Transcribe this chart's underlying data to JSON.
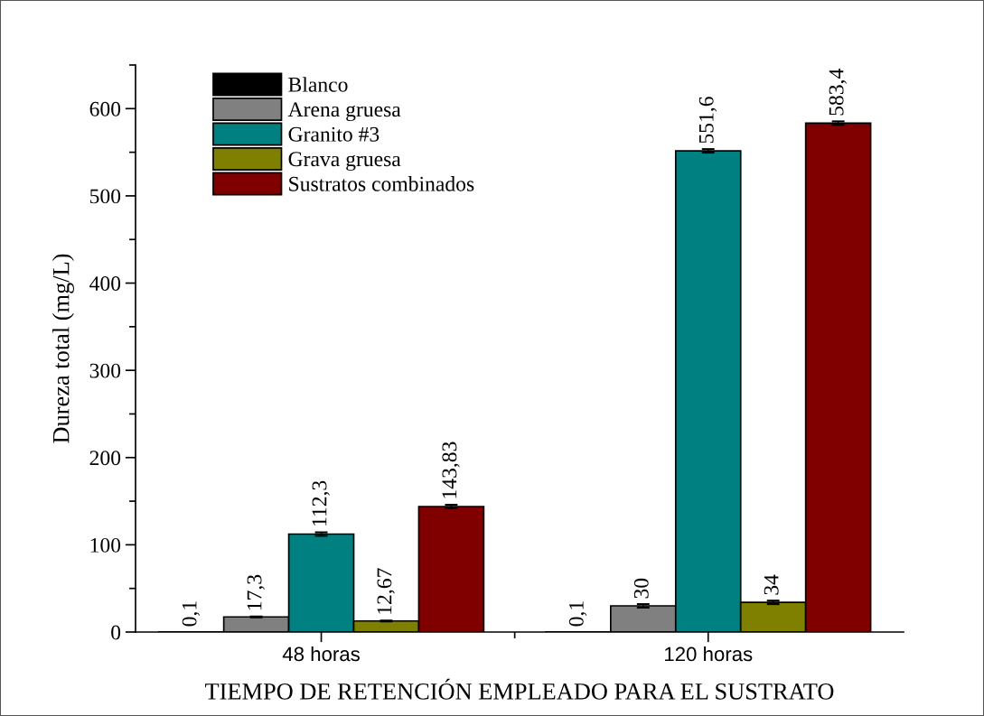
{
  "chart_data": {
    "type": "bar",
    "xlabel": "TIEMPO DE RETENCIÓN EMPLEADO PARA EL SUSTRATO",
    "ylabel": "Dureza total (mg/L)",
    "categories": [
      "48 horas",
      "120 horas"
    ],
    "series": [
      {
        "name": "Blanco",
        "color": "#000000",
        "values": [
          0.1,
          0.1
        ],
        "value_labels": [
          "0,1",
          "0,1"
        ],
        "errors": [
          null,
          null
        ]
      },
      {
        "name": "Arena gruesa",
        "color": "#808080",
        "values": [
          17.3,
          30
        ],
        "value_labels": [
          "17,3",
          "30"
        ],
        "errors": [
          0.5,
          2
        ]
      },
      {
        "name": "Granito #3",
        "color": "#008080",
        "values": [
          112.3,
          551.6
        ],
        "value_labels": [
          "112,3",
          "551,6"
        ],
        "errors": [
          2,
          2
        ]
      },
      {
        "name": "Grava gruesa",
        "color": "#808000",
        "values": [
          12.67,
          34
        ],
        "value_labels": [
          "12,67",
          "34"
        ],
        "errors": [
          0.5,
          2
        ]
      },
      {
        "name": "Sustratos combinados",
        "color": "#800000",
        "values": [
          143.83,
          583.4
        ],
        "value_labels": [
          "143,83",
          "583,4"
        ],
        "errors": [
          2,
          2
        ]
      }
    ],
    "ylim": [
      0,
      650
    ],
    "yticks": [
      0,
      100,
      200,
      300,
      400,
      500,
      600
    ],
    "grid": false,
    "legend": "top left"
  }
}
